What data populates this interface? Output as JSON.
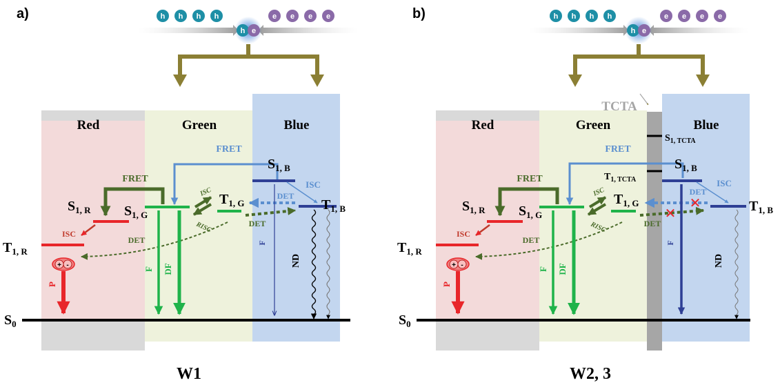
{
  "panel_a": {
    "tag": "a)",
    "caption": "W1",
    "carriers": {
      "hole": "h",
      "electron": "e",
      "exciton_left": "h",
      "exciton_right": "e"
    },
    "regions": {
      "red": "Red",
      "green": "Green",
      "blue": "Blue"
    },
    "levels": {
      "s0": {
        "main": "S",
        "sub": "0"
      },
      "t1r": {
        "main": "T",
        "sub": "1, R"
      },
      "s1r": {
        "main": "S",
        "sub": "1, R"
      },
      "s1g": {
        "main": "S",
        "sub": "1, G"
      },
      "t1g": {
        "main": "T",
        "sub": "1, G"
      },
      "s1b": {
        "main": "S",
        "sub": "1, B"
      },
      "t1b": {
        "main": "T",
        "sub": "1, B"
      }
    },
    "processes": {
      "fret_green": "FRET",
      "fret_blue": "FRET",
      "isc_red": "ISC",
      "isc_green": "ISC",
      "risc_green": "RISC",
      "isc_blue": "ISC",
      "det_upper": "DET",
      "det_lower": "DET",
      "det_long": "DET",
      "p": "P",
      "f_green": "F",
      "df_green": "DF",
      "f_blue": "F",
      "nd": "ND"
    },
    "polaron": {
      "plus": "+",
      "minus": "-"
    }
  },
  "panel_b": {
    "tag": "b)",
    "caption": "W2, 3",
    "carriers": {
      "hole": "h",
      "electron": "e",
      "exciton_left": "h",
      "exciton_right": "e"
    },
    "regions": {
      "red": "Red",
      "green": "Green",
      "blue": "Blue",
      "tcta": "TCTA"
    },
    "levels": {
      "s0": {
        "main": "S",
        "sub": "0"
      },
      "t1r": {
        "main": "T",
        "sub": "1, R"
      },
      "s1r": {
        "main": "S",
        "sub": "1, R"
      },
      "s1g": {
        "main": "S",
        "sub": "1, G"
      },
      "t1g": {
        "main": "T",
        "sub": "1, G"
      },
      "s1b": {
        "main": "S",
        "sub": "1, B"
      },
      "t1b": {
        "main": "T",
        "sub": "1, B"
      },
      "s1tcta": {
        "main": "S",
        "sub": "1, TCTA"
      },
      "t1tcta": {
        "main": "T",
        "sub": "1, TCTA"
      }
    },
    "processes": {
      "fret_green": "FRET",
      "fret_blue": "FRET",
      "isc_red": "ISC",
      "isc_green": "ISC",
      "risc_green": "RISC",
      "isc_blue": "ISC",
      "det_upper": "DET",
      "det_lower": "DET",
      "det_long": "DET",
      "p": "P",
      "f_green": "F",
      "df_green": "DF",
      "f_blue": "F",
      "nd": "ND"
    },
    "polaron": {
      "plus": "+",
      "minus": "-"
    },
    "blocked_mark": "✕"
  },
  "colors": {
    "red_region": "#f3dada",
    "green_region": "#eef2dc",
    "blue_region": "#c3d6ef",
    "grey_band": "#d9d9d9",
    "tcta_bar": "#a6a6a6",
    "red_level": "#e8262a",
    "green_level": "#1fb34a",
    "blue_level": "#2e3f95",
    "fret_green_arrow": "#4a6b2a",
    "fret_blue_arrow": "#5b8fcf",
    "olive_arrow": "#8b7f34",
    "hole": "#1e8fa6",
    "electron": "#8a6aa8"
  }
}
